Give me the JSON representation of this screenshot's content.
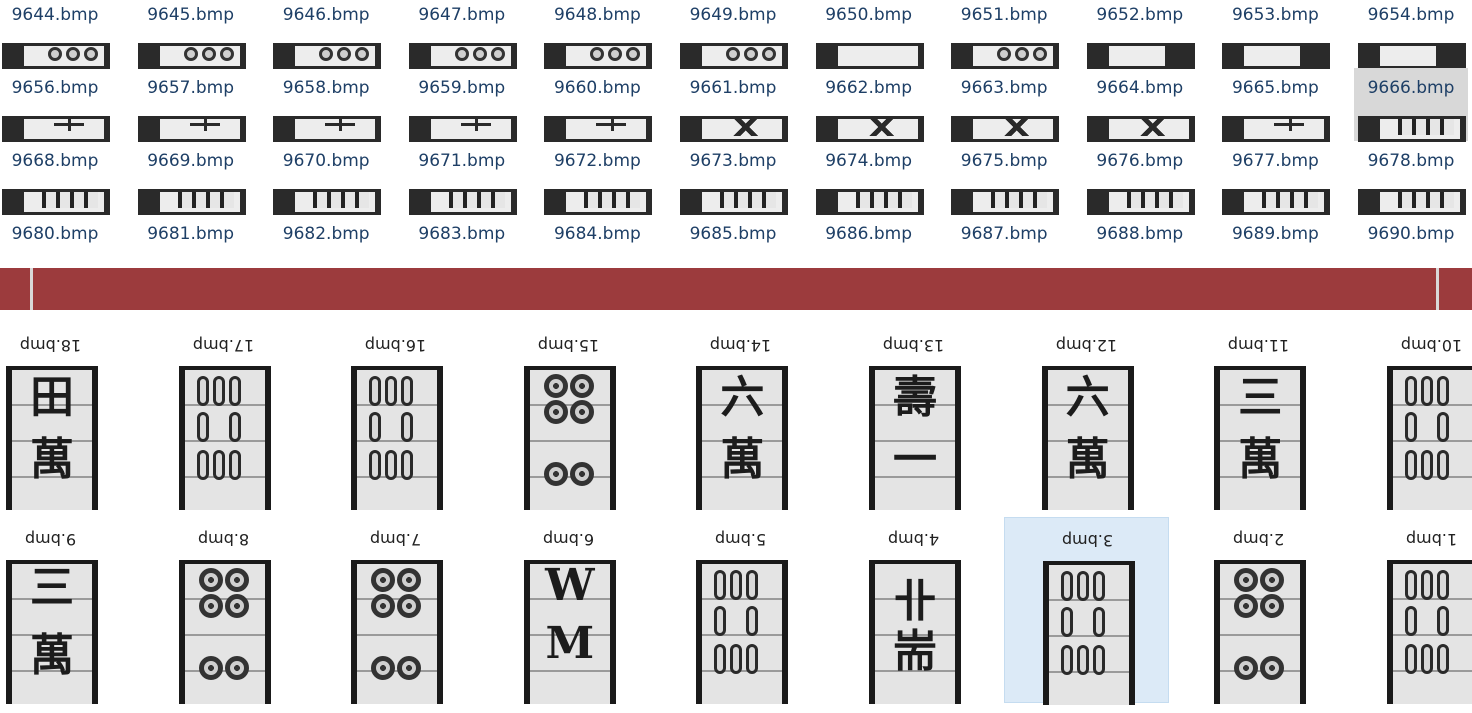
{
  "top_rows": [
    [
      "9644.bmp",
      "9645.bmp",
      "9646.bmp",
      "9647.bmp",
      "9648.bmp",
      "9649.bmp",
      "9650.bmp",
      "9651.bmp",
      "9652.bmp",
      "9653.bmp",
      "9654.bmp"
    ],
    [
      "9656.bmp",
      "9657.bmp",
      "9658.bmp",
      "9659.bmp",
      "9660.bmp",
      "9661.bmp",
      "9662.bmp",
      "9663.bmp",
      "9664.bmp",
      "9665.bmp",
      "9666.bmp"
    ],
    [
      "9668.bmp",
      "9669.bmp",
      "9670.bmp",
      "9671.bmp",
      "9672.bmp",
      "9673.bmp",
      "9674.bmp",
      "9675.bmp",
      "9676.bmp",
      "9677.bmp",
      "9678.bmp"
    ],
    [
      "9680.bmp",
      "9681.bmp",
      "9682.bmp",
      "9683.bmp",
      "9684.bmp",
      "9685.bmp",
      "9686.bmp",
      "9687.bmp",
      "9688.bmp",
      "9689.bmp",
      "9690.bmp"
    ]
  ],
  "top_selected": "9666.bmp",
  "bottom_rows": [
    [
      "18.bmp",
      "17.bmp",
      "16.bmp",
      "15.bmp",
      "14.bmp",
      "13.bmp",
      "12.bmp",
      "11.bmp",
      "10.bmp"
    ],
    [
      "9.bmp",
      "8.bmp",
      "7.bmp",
      "6.bmp",
      "5.bmp",
      "4.bmp",
      "3.bmp",
      "2.bmp",
      "1.bmp"
    ]
  ],
  "bottom_selected": "3.bmp",
  "colors": {
    "scroll_band": "#9c3b3d",
    "top_selection": "#d8d8d8",
    "bottom_selection": "#dceaf7",
    "filename_text": "#1e3f66"
  }
}
